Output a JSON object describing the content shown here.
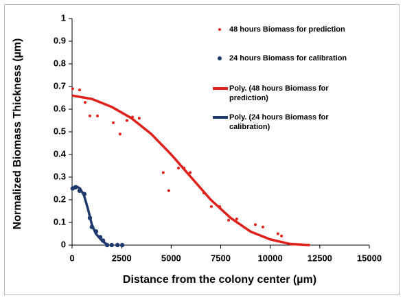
{
  "chart_data": {
    "type": "scatter",
    "x_label": "Distance from the colony center (µm)",
    "y_label": "Normalized Biomass Thickness (µm)",
    "xlim": [
      0,
      15000
    ],
    "xticks": [
      0,
      2500,
      5000,
      7500,
      10000,
      12500,
      15000
    ],
    "ylim": [
      0,
      1
    ],
    "yticks": [
      0,
      0.1,
      0.2,
      0.3,
      0.4,
      0.5,
      0.6,
      0.7,
      0.8,
      0.9,
      1
    ],
    "grid": false,
    "series": [
      {
        "name": "48 hours Biomass for prediction",
        "color": "#e0201b",
        "mode": "markers",
        "x": [
          30,
          380,
          660,
          900,
          1280,
          2080,
          2420,
          2770,
          3050,
          3390,
          4600,
          4880,
          5370,
          5650,
          5960,
          6650,
          7030,
          7450,
          7900,
          8310,
          9250,
          9630,
          10390,
          10570
        ],
        "values": [
          0.69,
          0.685,
          0.63,
          0.57,
          0.57,
          0.54,
          0.49,
          0.55,
          0.565,
          0.56,
          0.32,
          0.24,
          0.34,
          0.34,
          0.32,
          0.23,
          0.17,
          0.17,
          0.11,
          0.115,
          0.09,
          0.08,
          0.05,
          0.04
        ]
      },
      {
        "name": "24 hours Biomass for calibration",
        "color": "#1f3a6e",
        "mode": "markers",
        "x": [
          30,
          170,
          380,
          620,
          900,
          1000,
          1210,
          1420,
          1560,
          1770,
          2000,
          2290,
          2530
        ],
        "values": [
          0.25,
          0.255,
          0.24,
          0.225,
          0.12,
          0.08,
          0.06,
          0.035,
          0.02,
          0,
          0,
          0,
          0
        ]
      },
      {
        "name": "Poly. (48 hours Biomass for prediction)",
        "color": "#e0201b",
        "mode": "line",
        "x": [
          0,
          1000,
          2000,
          3000,
          4000,
          5000,
          6000,
          7000,
          8000,
          9000,
          10000,
          11000,
          12000
        ],
        "values": [
          0.66,
          0.645,
          0.61,
          0.56,
          0.49,
          0.4,
          0.3,
          0.2,
          0.12,
          0.06,
          0.025,
          0.005,
          0
        ]
      },
      {
        "name": "Poly. (24 hours Biomass for calibration)",
        "color": "#1f3a6e",
        "mode": "line",
        "x": [
          0,
          200,
          400,
          600,
          800,
          1000,
          1200,
          1500,
          1800
        ],
        "values": [
          0.25,
          0.26,
          0.25,
          0.22,
          0.16,
          0.09,
          0.05,
          0.02,
          0
        ]
      }
    ]
  }
}
